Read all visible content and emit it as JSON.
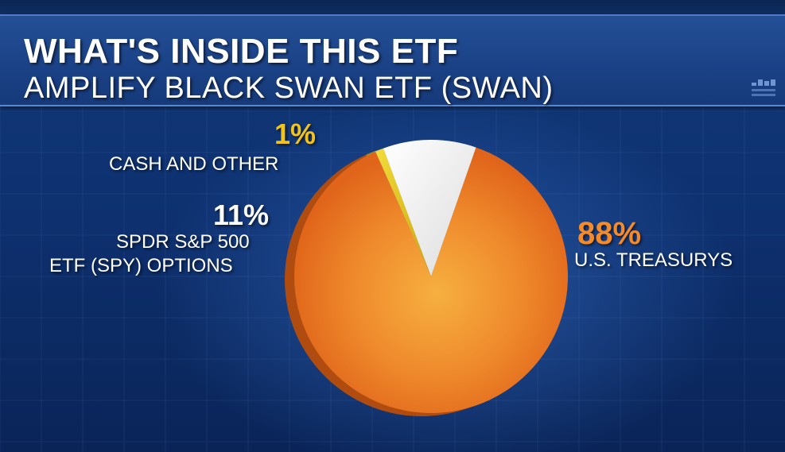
{
  "header": {
    "title": "WHAT'S INSIDE THIS ETF",
    "subtitle": "AMPLIFY BLACK SWAN ETF (SWAN)"
  },
  "colors": {
    "treasurys": "#f07a22",
    "spy_options": "#ececec",
    "cash": "#e0c21a",
    "pct_cash": "#f2c31c",
    "pct_spy": "#ffffff",
    "pct_treasurys": "#f58a2a"
  },
  "chart_data": {
    "type": "pie",
    "title": "WHAT'S INSIDE THIS ETF",
    "subtitle": "AMPLIFY BLACK SWAN ETF (SWAN)",
    "slices": [
      {
        "key": "cash",
        "label": "CASH AND OTHER",
        "label_lines": [
          "CASH AND OTHER"
        ],
        "value": 1,
        "pct_label": "1%"
      },
      {
        "key": "spy_options",
        "label": "SPDR S&P 500 ETF (SPY) OPTIONS",
        "label_lines": [
          "SPDR S&P 500",
          "ETF (SPY) OPTIONS"
        ],
        "value": 11,
        "pct_label": "11%"
      },
      {
        "key": "treasurys",
        "label": "U.S. TREASURYS",
        "label_lines": [
          "U.S. TREASURYS"
        ],
        "value": 88,
        "pct_label": "88%"
      }
    ],
    "legend": "none"
  }
}
